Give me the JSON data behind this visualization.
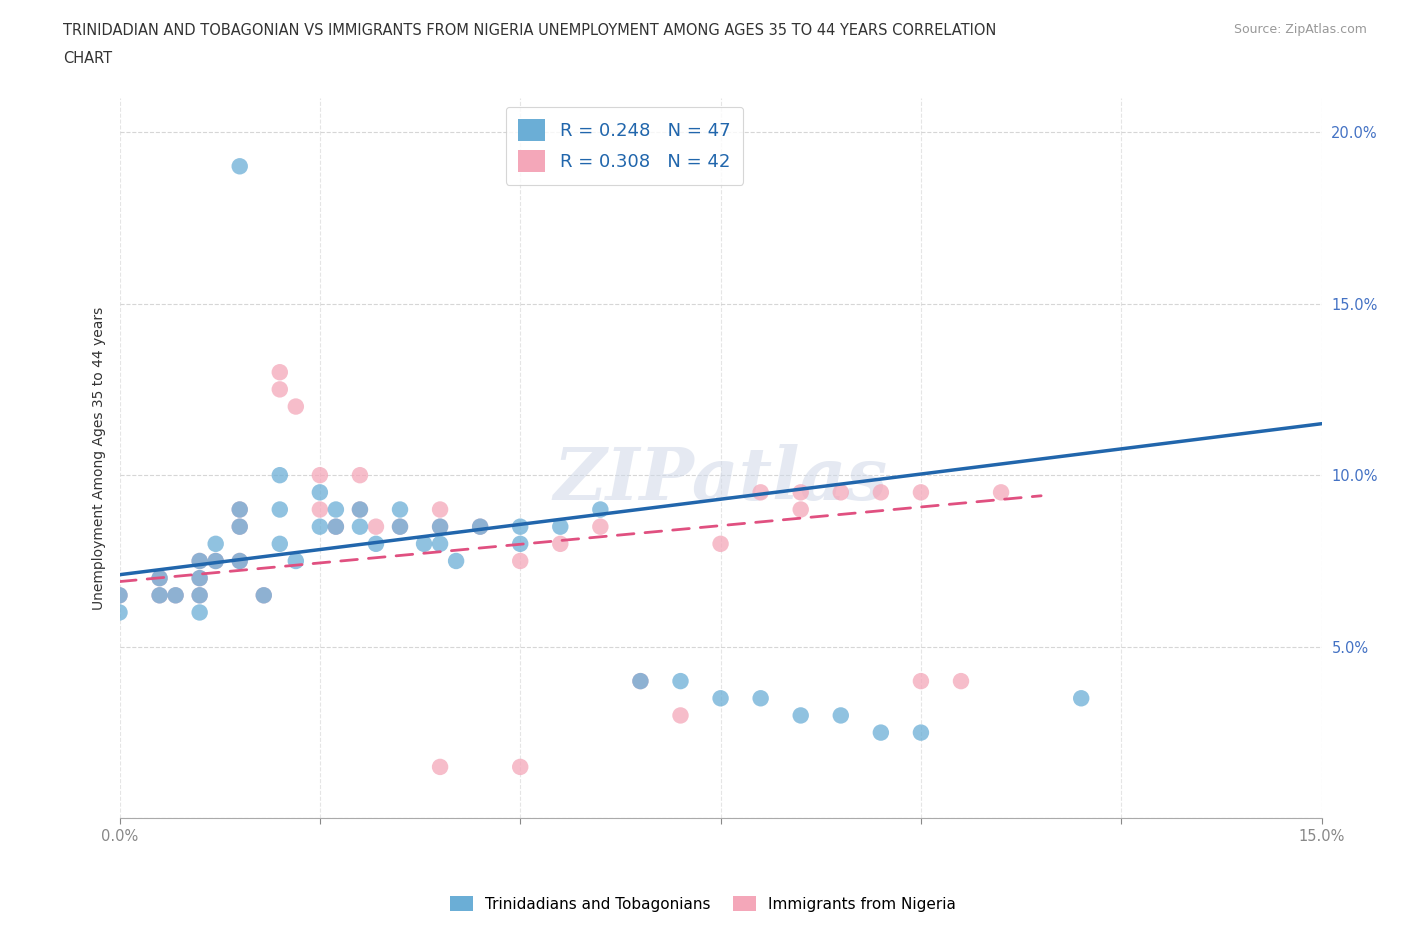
{
  "title_line1": "TRINIDADIAN AND TOBAGONIAN VS IMMIGRANTS FROM NIGERIA UNEMPLOYMENT AMONG AGES 35 TO 44 YEARS CORRELATION",
  "title_line2": "CHART",
  "source": "Source: ZipAtlas.com",
  "ylabel": "Unemployment Among Ages 35 to 44 years",
  "xlim": [
    0.0,
    0.15
  ],
  "ylim": [
    0.0,
    0.21
  ],
  "legend_label1": "R = 0.248   N = 47",
  "legend_label2": "R = 0.308   N = 42",
  "legend_bottom_label1": "Trinidadians and Tobagonians",
  "legend_bottom_label2": "Immigrants from Nigeria",
  "blue_color": "#6baed6",
  "pink_color": "#f4a7b9",
  "blue_line_color": "#2166ac",
  "pink_line_color": "#e05080",
  "blue_scatter_x": [
    0.015,
    0.0,
    0.005,
    0.005,
    0.007,
    0.01,
    0.01,
    0.01,
    0.01,
    0.012,
    0.012,
    0.015,
    0.015,
    0.015,
    0.018,
    0.02,
    0.02,
    0.02,
    0.022,
    0.025,
    0.025,
    0.027,
    0.027,
    0.03,
    0.03,
    0.032,
    0.035,
    0.035,
    0.038,
    0.04,
    0.04,
    0.042,
    0.045,
    0.05,
    0.05,
    0.055,
    0.06,
    0.065,
    0.07,
    0.075,
    0.08,
    0.085,
    0.09,
    0.095,
    0.1,
    0.12,
    0.0
  ],
  "blue_scatter_y": [
    0.19,
    0.065,
    0.07,
    0.065,
    0.065,
    0.075,
    0.07,
    0.065,
    0.06,
    0.08,
    0.075,
    0.09,
    0.085,
    0.075,
    0.065,
    0.1,
    0.09,
    0.08,
    0.075,
    0.095,
    0.085,
    0.09,
    0.085,
    0.09,
    0.085,
    0.08,
    0.09,
    0.085,
    0.08,
    0.085,
    0.08,
    0.075,
    0.085,
    0.085,
    0.08,
    0.085,
    0.09,
    0.04,
    0.04,
    0.035,
    0.035,
    0.03,
    0.03,
    0.025,
    0.025,
    0.035,
    0.06
  ],
  "pink_scatter_x": [
    0.0,
    0.005,
    0.005,
    0.007,
    0.01,
    0.01,
    0.01,
    0.012,
    0.015,
    0.015,
    0.015,
    0.018,
    0.02,
    0.02,
    0.022,
    0.025,
    0.025,
    0.027,
    0.03,
    0.03,
    0.032,
    0.035,
    0.04,
    0.04,
    0.045,
    0.05,
    0.055,
    0.06,
    0.065,
    0.07,
    0.075,
    0.08,
    0.085,
    0.085,
    0.09,
    0.095,
    0.1,
    0.1,
    0.105,
    0.11,
    0.04,
    0.05
  ],
  "pink_scatter_y": [
    0.065,
    0.07,
    0.065,
    0.065,
    0.075,
    0.07,
    0.065,
    0.075,
    0.09,
    0.085,
    0.075,
    0.065,
    0.13,
    0.125,
    0.12,
    0.1,
    0.09,
    0.085,
    0.1,
    0.09,
    0.085,
    0.085,
    0.09,
    0.085,
    0.085,
    0.075,
    0.08,
    0.085,
    0.04,
    0.03,
    0.08,
    0.095,
    0.095,
    0.09,
    0.095,
    0.095,
    0.095,
    0.04,
    0.04,
    0.095,
    0.015,
    0.015
  ],
  "blue_trend_x": [
    0.0,
    0.15
  ],
  "blue_trend_y": [
    0.071,
    0.115
  ],
  "pink_trend_x": [
    0.0,
    0.115
  ],
  "pink_trend_y": [
    0.069,
    0.094
  ]
}
